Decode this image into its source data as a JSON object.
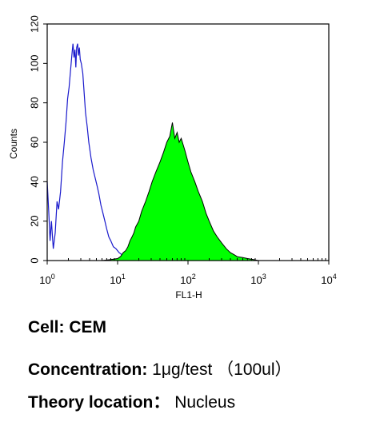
{
  "chart_data": {
    "type": "area",
    "title": "",
    "xlabel": "FL1-H",
    "ylabel": "Counts",
    "xscale": "log",
    "xlim": [
      1,
      10000
    ],
    "ylim": [
      0,
      120
    ],
    "x_ticks": [
      {
        "base": "10",
        "exp": "0"
      },
      {
        "base": "10",
        "exp": "1"
      },
      {
        "base": "10",
        "exp": "2"
      },
      {
        "base": "10",
        "exp": "3"
      },
      {
        "base": "10",
        "exp": "4"
      }
    ],
    "y_ticks": [
      "0",
      "20",
      "40",
      "60",
      "80",
      "100",
      "120"
    ],
    "series": [
      {
        "style": "outline",
        "color": "#1a1acc",
        "points": [
          [
            1.0,
            40
          ],
          [
            1.05,
            25
          ],
          [
            1.1,
            10
          ],
          [
            1.15,
            20
          ],
          [
            1.22,
            6
          ],
          [
            1.3,
            14
          ],
          [
            1.38,
            30
          ],
          [
            1.45,
            26
          ],
          [
            1.55,
            35
          ],
          [
            1.65,
            50
          ],
          [
            1.75,
            60
          ],
          [
            1.85,
            70
          ],
          [
            1.95,
            82
          ],
          [
            2.05,
            88
          ],
          [
            2.15,
            97
          ],
          [
            2.25,
            105
          ],
          [
            2.32,
            110
          ],
          [
            2.4,
            103
          ],
          [
            2.48,
            107
          ],
          [
            2.55,
            98
          ],
          [
            2.62,
            108
          ],
          [
            2.7,
            110
          ],
          [
            2.78,
            104
          ],
          [
            2.86,
            108
          ],
          [
            2.95,
            102
          ],
          [
            3.05,
            100
          ],
          [
            3.2,
            95
          ],
          [
            3.35,
            85
          ],
          [
            3.5,
            75
          ],
          [
            3.7,
            68
          ],
          [
            3.9,
            60
          ],
          [
            4.2,
            52
          ],
          [
            4.5,
            46
          ],
          [
            4.8,
            42
          ],
          [
            5.1,
            38
          ],
          [
            5.4,
            34
          ],
          [
            5.8,
            28
          ],
          [
            6.2,
            24
          ],
          [
            6.6,
            20
          ],
          [
            7.0,
            16
          ],
          [
            7.5,
            12
          ],
          [
            8.0,
            10
          ],
          [
            8.7,
            7
          ],
          [
            9.5,
            6
          ],
          [
            10.5,
            4
          ],
          [
            11.5,
            3
          ],
          [
            12.5,
            2
          ],
          [
            14,
            1
          ],
          [
            16,
            0.5
          ],
          [
            20,
            0
          ]
        ]
      },
      {
        "style": "filled",
        "color": "#00ff00",
        "points": [
          [
            6,
            0
          ],
          [
            8,
            0.5
          ],
          [
            10,
            1
          ],
          [
            11,
            2
          ],
          [
            12,
            4
          ],
          [
            13,
            5
          ],
          [
            14,
            7
          ],
          [
            15,
            10
          ],
          [
            16,
            12
          ],
          [
            17,
            14
          ],
          [
            18,
            17
          ],
          [
            20,
            20
          ],
          [
            22,
            25
          ],
          [
            25,
            30
          ],
          [
            28,
            35
          ],
          [
            31,
            40
          ],
          [
            35,
            45
          ],
          [
            40,
            50
          ],
          [
            45,
            55
          ],
          [
            50,
            60
          ],
          [
            55,
            63
          ],
          [
            60,
            70
          ],
          [
            65,
            62
          ],
          [
            70,
            65
          ],
          [
            75,
            60
          ],
          [
            80,
            62
          ],
          [
            90,
            56
          ],
          [
            100,
            50
          ],
          [
            110,
            45
          ],
          [
            125,
            40
          ],
          [
            140,
            35
          ],
          [
            160,
            30
          ],
          [
            180,
            24
          ],
          [
            200,
            20
          ],
          [
            230,
            15
          ],
          [
            260,
            12
          ],
          [
            300,
            9
          ],
          [
            350,
            6
          ],
          [
            400,
            4
          ],
          [
            450,
            3
          ],
          [
            500,
            2
          ],
          [
            600,
            1.5
          ],
          [
            700,
            1
          ],
          [
            850,
            0.5
          ],
          [
            1000,
            0
          ]
        ]
      }
    ]
  },
  "captions": {
    "cell_label": "Cell:",
    "cell_value": "CEM",
    "concentration_label": "Concentration:",
    "concentration_value": "1μg/test （100ul）",
    "theory_label": "Theory location：",
    "theory_value": "Nucleus"
  }
}
